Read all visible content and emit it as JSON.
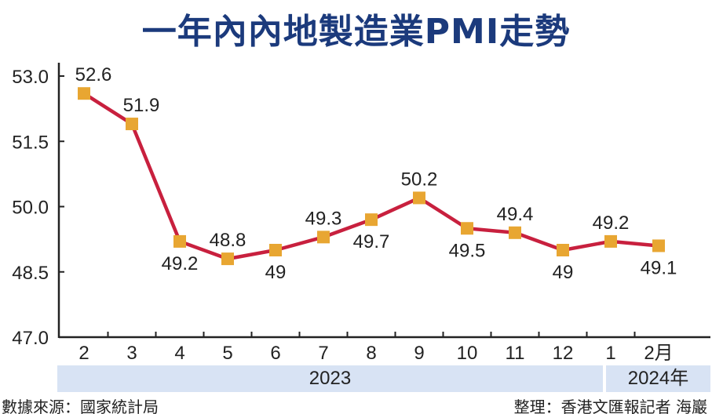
{
  "chart_data": {
    "type": "line",
    "title": "一年內內地製造業PMI走勢",
    "categories": [
      "2",
      "3",
      "4",
      "5",
      "6",
      "7",
      "8",
      "9",
      "10",
      "11",
      "12",
      "1",
      "2月"
    ],
    "values": [
      52.6,
      51.9,
      49.2,
      48.8,
      49,
      49.3,
      49.7,
      50.2,
      49.5,
      49.4,
      49,
      49.2,
      49.1
    ],
    "value_labels": [
      "52.6",
      "51.9",
      "49.2",
      "48.8",
      "49",
      "49.3",
      "49.7",
      "50.2",
      "49.5",
      "49.4",
      "49",
      "49.2",
      "49.1"
    ],
    "label_pos": [
      "above",
      "above",
      "below",
      "above",
      "below",
      "above",
      "below",
      "above",
      "below",
      "above",
      "below",
      "above",
      "below"
    ],
    "yticks": [
      "47.0",
      "48.5",
      "50.0",
      "51.5",
      "53.0"
    ],
    "ylim": [
      47,
      53
    ],
    "year_groups": [
      "2023",
      "2024年"
    ],
    "line_color": "#c8203e",
    "marker_color": "#e8a632",
    "grid": false
  },
  "footer": {
    "source": "數據來源：國家統計局",
    "credit": "整理：香港文匯報記者 海巖"
  }
}
